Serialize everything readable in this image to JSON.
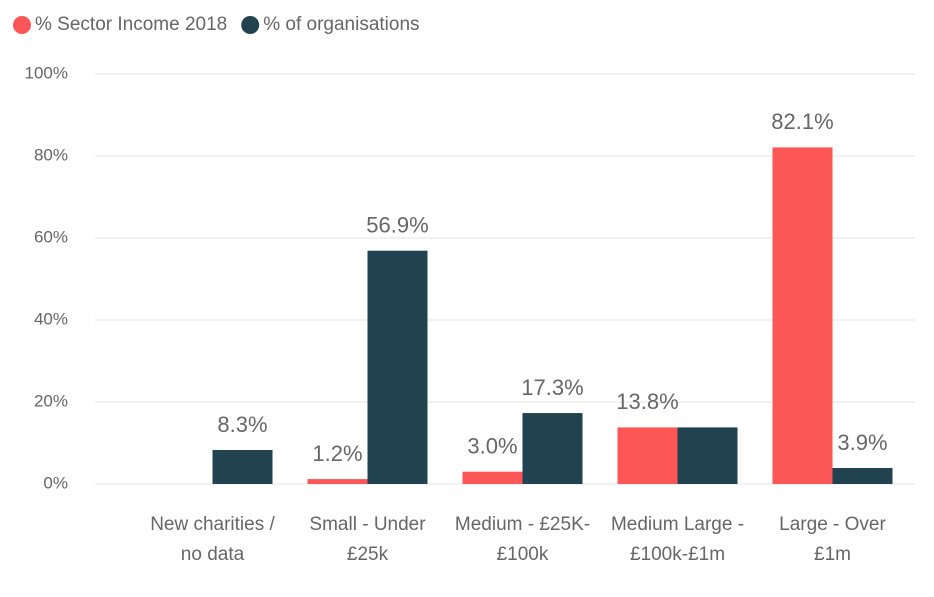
{
  "chart_data": {
    "type": "bar",
    "categories": [
      "New charities / no data",
      "Small - Under £25k",
      "Medium - £25K-£100k",
      "Medium Large - £100k-£1m",
      "Large - Over £1m"
    ],
    "series": [
      {
        "name": "% Sector Income 2018",
        "color": "#fd5656",
        "values": [
          null,
          1.2,
          3.0,
          13.8,
          82.1
        ],
        "value_labels": [
          null,
          "1.2%",
          "3.0%",
          "13.8%",
          "82.1%"
        ]
      },
      {
        "name": "% of organisations",
        "color": "#21424f",
        "values": [
          8.3,
          56.9,
          17.3,
          13.8,
          3.9
        ],
        "value_labels": [
          "8.3%",
          "56.9%",
          "17.3%",
          null,
          "3.9%"
        ]
      }
    ],
    "ylim": [
      0,
      100
    ],
    "yticks": [
      {
        "value": 0,
        "label": "0%"
      },
      {
        "value": 20,
        "label": "20%"
      },
      {
        "value": 40,
        "label": "40%"
      },
      {
        "value": 60,
        "label": "60%"
      },
      {
        "value": 80,
        "label": "80%"
      },
      {
        "value": 100,
        "label": "100%"
      }
    ],
    "grid": true,
    "legend": "top-left"
  }
}
